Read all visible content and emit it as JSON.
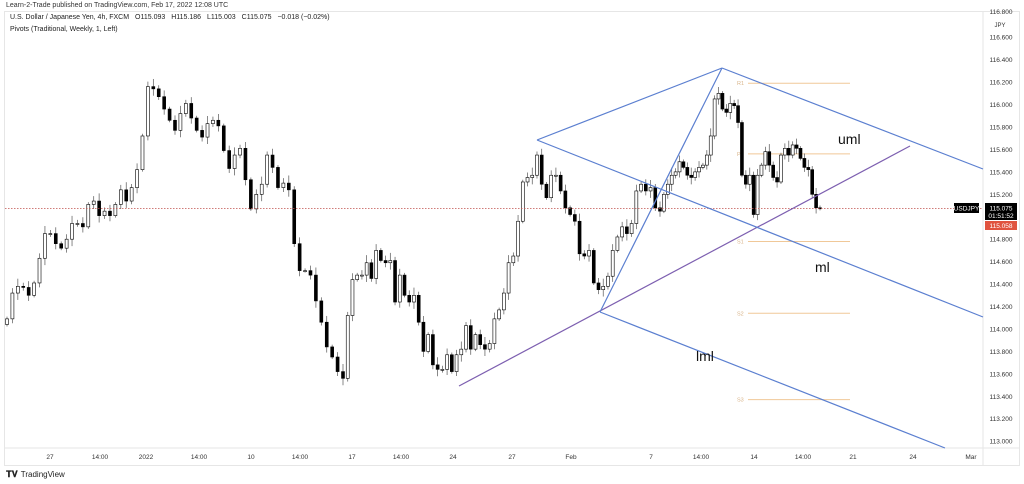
{
  "header": {
    "published": "Learn-2-Trade published on TradingView.com, Feb 17, 2022 12:08 UTC"
  },
  "legend": {
    "symbol": "U.S. Dollar / Japanese Yen, 4h, FXCM",
    "open": "O115.093",
    "high": "H115.186",
    "low": "L115.003",
    "close": "C115.075",
    "change": "−0.018 (−0.02%)",
    "indicator": "Pivots (Traditional, Weekly, 1, Left)"
  },
  "footer": {
    "logo_text": "TradingView"
  },
  "colors": {
    "up_body": "#ffffff",
    "down_body": "#000000",
    "pitchfork": "#5b7fd0",
    "median_handle": "#7d5fb0",
    "pivot": "#f0c898",
    "price_line": "#c0504d",
    "last_price_box": "#e0533f"
  },
  "chart_data": {
    "type": "candlestick",
    "symbol": "USDJPY",
    "timeframe": "4h",
    "currency": "JPY",
    "ylim": [
      113.0,
      116.8
    ],
    "y_ticks": [
      "116.800",
      "116.600",
      "116.400",
      "116.200",
      "116.000",
      "115.800",
      "115.600",
      "115.400",
      "115.200",
      "114.800",
      "114.600",
      "114.400",
      "114.200",
      "114.000",
      "113.800",
      "113.600",
      "113.400",
      "113.200",
      "113.000"
    ],
    "x_ticks": [
      "27",
      "14:00",
      "2022",
      "14:00",
      "10",
      "14:00",
      "17",
      "14:00",
      "24",
      "27",
      "Feb",
      "7",
      "14:00",
      "14",
      "14:00",
      "21",
      "24",
      "Mar"
    ],
    "close": [
      114.09,
      114.32,
      114.38,
      114.37,
      114.3,
      114.41,
      114.63,
      114.85,
      114.85,
      114.76,
      114.72,
      114.8,
      114.94,
      114.94,
      114.91,
      115.11,
      115.14,
      115.01,
      115.05,
      115.01,
      115.11,
      115.24,
      115.14,
      115.26,
      115.42,
      115.72,
      116.16,
      116.14,
      116.07,
      115.96,
      115.86,
      115.77,
      115.92,
      116.01,
      115.88,
      115.77,
      115.71,
      115.83,
      115.86,
      115.81,
      115.59,
      115.43,
      115.55,
      115.61,
      115.33,
      115.07,
      115.2,
      115.29,
      115.55,
      115.44,
      115.26,
      115.3,
      115.24,
      114.76,
      114.52,
      114.52,
      114.48,
      114.25,
      114.06,
      113.84,
      113.75,
      113.62,
      113.56,
      114.12,
      114.44,
      114.48,
      114.48,
      114.59,
      114.45,
      114.7,
      114.61,
      114.59,
      114.61,
      114.24,
      114.48,
      114.3,
      114.24,
      114.3,
      114.06,
      113.8,
      113.95,
      113.68,
      113.64,
      113.64,
      113.77,
      113.62,
      113.77,
      113.82,
      114.03,
      113.82,
      113.95,
      113.86,
      113.82,
      113.87,
      114.09,
      114.17,
      114.32,
      114.59,
      114.65,
      114.96,
      115.31,
      115.35,
      115.37,
      115.55,
      115.29,
      115.17,
      115.37,
      115.37,
      115.23,
      115.08,
      115.02,
      114.96,
      114.67,
      114.65,
      114.7,
      114.41,
      114.35,
      114.38,
      114.47,
      114.7,
      114.82,
      114.91,
      114.85,
      114.94,
      115.23,
      115.29,
      115.23,
      115.26,
      115.08,
      115.05,
      115.2,
      115.29,
      115.37,
      115.4,
      115.49,
      115.44,
      115.37,
      115.35,
      115.4,
      115.44,
      115.46,
      115.55,
      115.72,
      116.05,
      116.1,
      115.96,
      115.93,
      116.01,
      115.99,
      115.84,
      115.37,
      115.29,
      115.37,
      115.02,
      115.37,
      115.46,
      115.58,
      115.46,
      115.35,
      115.31,
      115.55,
      115.61,
      115.55,
      115.64,
      115.61,
      115.52,
      115.44,
      115.42,
      115.2,
      115.08,
      115.075
    ],
    "pivots": [
      {
        "label": "R1",
        "price": 116.19
      },
      {
        "label": "P",
        "price": 115.56
      },
      {
        "label": "S1",
        "price": 114.78
      },
      {
        "label": "S2",
        "price": 114.14
      },
      {
        "label": "S3",
        "price": 113.37
      }
    ],
    "annotations": {
      "uml": "uml",
      "ml": "ml",
      "lml": "lml"
    },
    "last_price": {
      "symbol_tag": "USDJPY",
      "price": "115.075",
      "countdown": "01:51:52",
      "bid": "115.058"
    }
  }
}
